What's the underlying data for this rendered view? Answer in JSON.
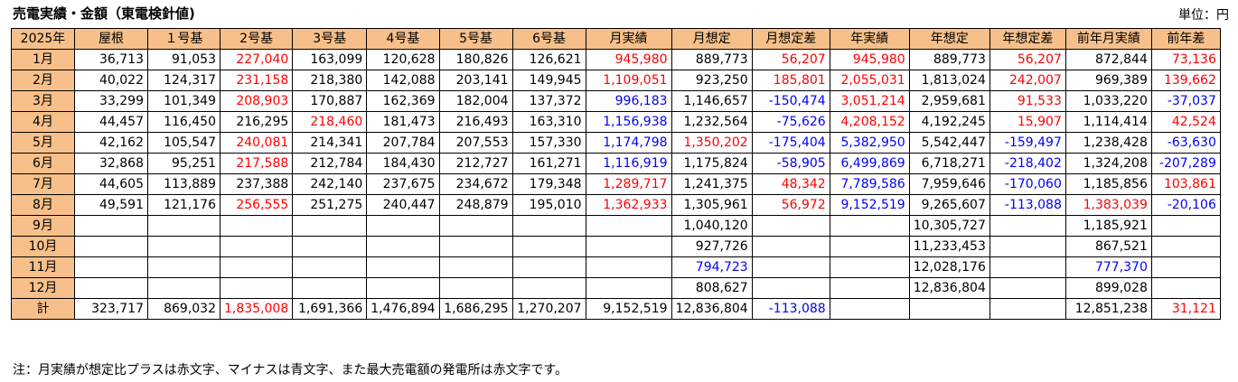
{
  "title": "売電実績・金額（東電検針値)",
  "unit": "単位：円",
  "headers": [
    "2025年",
    "屋根",
    "１号基",
    "2号基",
    "3号基",
    "4号基",
    "5号基",
    "6号基",
    "月実績",
    "月想定",
    "月想定差",
    "年実績",
    "年想定",
    "年想定差",
    "前年月実績",
    "前年差"
  ],
  "rows": [
    {
      "label": "1月",
      "cells": [
        {
          "v": "36,713"
        },
        {
          "v": "91,053"
        },
        {
          "v": "227,040",
          "c": "red"
        },
        {
          "v": "163,099"
        },
        {
          "v": "120,628"
        },
        {
          "v": "180,826"
        },
        {
          "v": "126,621"
        },
        {
          "v": "945,980",
          "c": "red"
        },
        {
          "v": "889,773"
        },
        {
          "v": "56,207",
          "c": "red"
        },
        {
          "v": "945,980",
          "c": "red"
        },
        {
          "v": "889,773"
        },
        {
          "v": "56,207",
          "c": "red"
        },
        {
          "v": "872,844"
        },
        {
          "v": "73,136",
          "c": "red"
        }
      ]
    },
    {
      "label": "2月",
      "cells": [
        {
          "v": "40,022"
        },
        {
          "v": "124,317"
        },
        {
          "v": "231,158",
          "c": "red"
        },
        {
          "v": "218,380"
        },
        {
          "v": "142,088"
        },
        {
          "v": "203,141"
        },
        {
          "v": "149,945"
        },
        {
          "v": "1,109,051",
          "c": "red"
        },
        {
          "v": "923,250"
        },
        {
          "v": "185,801",
          "c": "red"
        },
        {
          "v": "2,055,031",
          "c": "red"
        },
        {
          "v": "1,813,024"
        },
        {
          "v": "242,007",
          "c": "red"
        },
        {
          "v": "969,389"
        },
        {
          "v": "139,662",
          "c": "red"
        }
      ]
    },
    {
      "label": "3月",
      "cells": [
        {
          "v": "33,299"
        },
        {
          "v": "101,349"
        },
        {
          "v": "208,903",
          "c": "red"
        },
        {
          "v": "170,887"
        },
        {
          "v": "162,369"
        },
        {
          "v": "182,004"
        },
        {
          "v": "137,372"
        },
        {
          "v": "996,183",
          "c": "blue"
        },
        {
          "v": "1,146,657"
        },
        {
          "v": "-150,474",
          "c": "blue"
        },
        {
          "v": "3,051,214",
          "c": "red"
        },
        {
          "v": "2,959,681"
        },
        {
          "v": "91,533",
          "c": "red"
        },
        {
          "v": "1,033,220"
        },
        {
          "v": "-37,037",
          "c": "blue"
        }
      ]
    },
    {
      "label": "4月",
      "cells": [
        {
          "v": "44,457"
        },
        {
          "v": "116,450"
        },
        {
          "v": "216,295"
        },
        {
          "v": "218,460",
          "c": "red"
        },
        {
          "v": "181,473"
        },
        {
          "v": "216,493"
        },
        {
          "v": "163,310"
        },
        {
          "v": "1,156,938",
          "c": "blue"
        },
        {
          "v": "1,232,564"
        },
        {
          "v": "-75,626",
          "c": "blue"
        },
        {
          "v": "4,208,152",
          "c": "red"
        },
        {
          "v": "4,192,245"
        },
        {
          "v": "15,907",
          "c": "red"
        },
        {
          "v": "1,114,414"
        },
        {
          "v": "42,524",
          "c": "red"
        }
      ]
    },
    {
      "label": "5月",
      "cells": [
        {
          "v": "42,162"
        },
        {
          "v": "105,547"
        },
        {
          "v": "240,081",
          "c": "red"
        },
        {
          "v": "214,341"
        },
        {
          "v": "207,784"
        },
        {
          "v": "207,553"
        },
        {
          "v": "157,330"
        },
        {
          "v": "1,174,798",
          "c": "blue"
        },
        {
          "v": "1,350,202",
          "c": "red"
        },
        {
          "v": "-175,404",
          "c": "blue"
        },
        {
          "v": "5,382,950",
          "c": "blue"
        },
        {
          "v": "5,542,447"
        },
        {
          "v": "-159,497",
          "c": "blue"
        },
        {
          "v": "1,238,428"
        },
        {
          "v": "-63,630",
          "c": "blue"
        }
      ]
    },
    {
      "label": "6月",
      "cells": [
        {
          "v": "32,868"
        },
        {
          "v": "95,251"
        },
        {
          "v": "217,588",
          "c": "red"
        },
        {
          "v": "212,784"
        },
        {
          "v": "184,430"
        },
        {
          "v": "212,727"
        },
        {
          "v": "161,271"
        },
        {
          "v": "1,116,919",
          "c": "blue"
        },
        {
          "v": "1,175,824"
        },
        {
          "v": "-58,905",
          "c": "blue"
        },
        {
          "v": "6,499,869",
          "c": "blue"
        },
        {
          "v": "6,718,271"
        },
        {
          "v": "-218,402",
          "c": "blue"
        },
        {
          "v": "1,324,208"
        },
        {
          "v": "-207,289",
          "c": "blue"
        }
      ]
    },
    {
      "label": "7月",
      "cells": [
        {
          "v": "44,605"
        },
        {
          "v": "113,889"
        },
        {
          "v": "237,388"
        },
        {
          "v": "242,140"
        },
        {
          "v": "237,675"
        },
        {
          "v": "234,672"
        },
        {
          "v": "179,348"
        },
        {
          "v": "1,289,717",
          "c": "red"
        },
        {
          "v": "1,241,375"
        },
        {
          "v": "48,342",
          "c": "red"
        },
        {
          "v": "7,789,586",
          "c": "blue"
        },
        {
          "v": "7,959,646"
        },
        {
          "v": "-170,060",
          "c": "blue"
        },
        {
          "v": "1,185,856"
        },
        {
          "v": "103,861",
          "c": "red"
        }
      ]
    },
    {
      "label": "8月",
      "cells": [
        {
          "v": "49,591"
        },
        {
          "v": "121,176"
        },
        {
          "v": "256,555",
          "c": "red"
        },
        {
          "v": "251,275"
        },
        {
          "v": "240,447"
        },
        {
          "v": "248,879"
        },
        {
          "v": "195,010"
        },
        {
          "v": "1,362,933",
          "c": "red"
        },
        {
          "v": "1,305,961"
        },
        {
          "v": "56,972",
          "c": "red"
        },
        {
          "v": "9,152,519",
          "c": "blue"
        },
        {
          "v": "9,265,607"
        },
        {
          "v": "-113,088",
          "c": "blue"
        },
        {
          "v": "1,383,039",
          "c": "red"
        },
        {
          "v": "-20,106",
          "c": "blue"
        }
      ]
    },
    {
      "label": "9月",
      "cells": [
        {
          "v": ""
        },
        {
          "v": ""
        },
        {
          "v": ""
        },
        {
          "v": ""
        },
        {
          "v": ""
        },
        {
          "v": ""
        },
        {
          "v": ""
        },
        {
          "v": ""
        },
        {
          "v": "1,040,120"
        },
        {
          "v": ""
        },
        {
          "v": ""
        },
        {
          "v": "10,305,727"
        },
        {
          "v": ""
        },
        {
          "v": "1,185,921"
        },
        {
          "v": ""
        }
      ]
    },
    {
      "label": "10月",
      "cells": [
        {
          "v": ""
        },
        {
          "v": ""
        },
        {
          "v": ""
        },
        {
          "v": ""
        },
        {
          "v": ""
        },
        {
          "v": ""
        },
        {
          "v": ""
        },
        {
          "v": ""
        },
        {
          "v": "927,726"
        },
        {
          "v": ""
        },
        {
          "v": ""
        },
        {
          "v": "11,233,453"
        },
        {
          "v": ""
        },
        {
          "v": "867,521"
        },
        {
          "v": ""
        }
      ]
    },
    {
      "label": "11月",
      "cells": [
        {
          "v": ""
        },
        {
          "v": ""
        },
        {
          "v": ""
        },
        {
          "v": ""
        },
        {
          "v": ""
        },
        {
          "v": ""
        },
        {
          "v": ""
        },
        {
          "v": ""
        },
        {
          "v": "794,723",
          "c": "blue"
        },
        {
          "v": ""
        },
        {
          "v": ""
        },
        {
          "v": "12,028,176"
        },
        {
          "v": ""
        },
        {
          "v": "777,370",
          "c": "blue"
        },
        {
          "v": ""
        }
      ]
    },
    {
      "label": "12月",
      "cells": [
        {
          "v": ""
        },
        {
          "v": ""
        },
        {
          "v": ""
        },
        {
          "v": ""
        },
        {
          "v": ""
        },
        {
          "v": ""
        },
        {
          "v": ""
        },
        {
          "v": ""
        },
        {
          "v": "808,627"
        },
        {
          "v": ""
        },
        {
          "v": ""
        },
        {
          "v": "12,836,804"
        },
        {
          "v": ""
        },
        {
          "v": "899,028"
        },
        {
          "v": ""
        }
      ]
    },
    {
      "label": "計",
      "cells": [
        {
          "v": "323,717"
        },
        {
          "v": "869,032"
        },
        {
          "v": "1,835,008",
          "c": "red"
        },
        {
          "v": "1,691,366"
        },
        {
          "v": "1,476,894"
        },
        {
          "v": "1,686,295"
        },
        {
          "v": "1,270,207"
        },
        {
          "v": "9,152,519"
        },
        {
          "v": "12,836,804"
        },
        {
          "v": "-113,088",
          "c": "blue"
        },
        {
          "v": ""
        },
        {
          "v": ""
        },
        {
          "v": ""
        },
        {
          "v": "12,851,238"
        },
        {
          "v": "31,121",
          "c": "red"
        }
      ]
    }
  ],
  "note": "注：月実績が想定比プラスは赤文字、マイナスは青文字、また最大売電額の発電所は赤文字です。",
  "colors": {
    "header_bg": "#f7c08a",
    "positive": "#ff0000",
    "negative": "#0000ff"
  }
}
